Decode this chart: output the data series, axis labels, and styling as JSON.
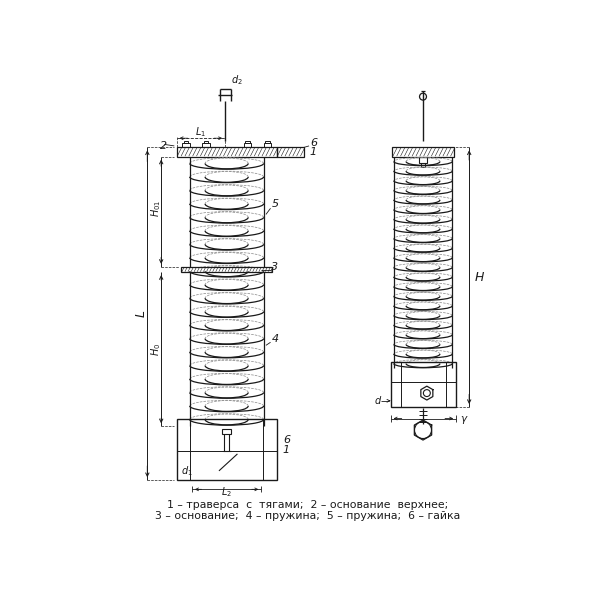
{
  "bg_color": "#ffffff",
  "line_color": "#1a1a1a",
  "gray_color": "#888888",
  "caption_line1": "1 – траверса  с  тягами;  2 – основание  верхнее;",
  "caption_line2": "3 – основание;  4 – пружина;  5 – пружина;  6 – гайка"
}
